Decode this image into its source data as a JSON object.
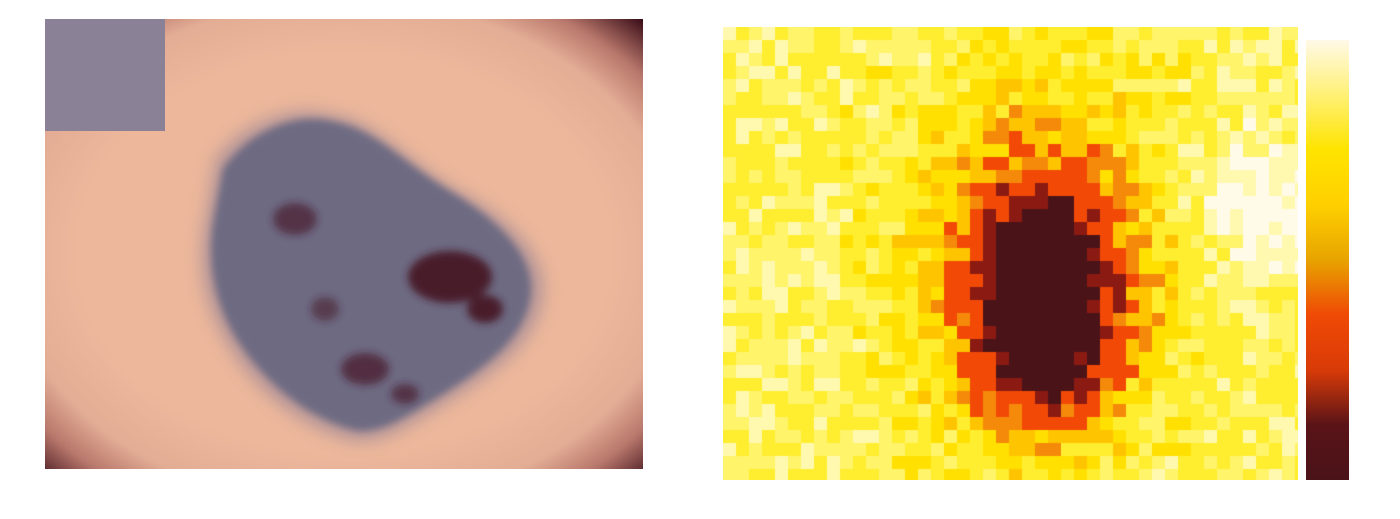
{
  "figure": {
    "panels": [
      "dermoscopy-image",
      "attention-heatmap",
      "colorbar"
    ]
  },
  "colors": {
    "skin": "#ecb79b",
    "lesion": "#6d6a82",
    "lesion_dark": "#4a1c2c",
    "vignette": "#3a0d18",
    "patch": "#8a8197",
    "heat_low": "#fffbea",
    "heat_mid": "#ffe600",
    "heat_high": "#f24a06",
    "heat_peak": "#4a1318"
  },
  "colorbar": {
    "stops": [
      "#fff9e8",
      "#fff176",
      "#ffe400",
      "#ffd000",
      "#e8a400",
      "#f04a06",
      "#d93b08",
      "#5a1418",
      "#4a1318"
    ]
  }
}
